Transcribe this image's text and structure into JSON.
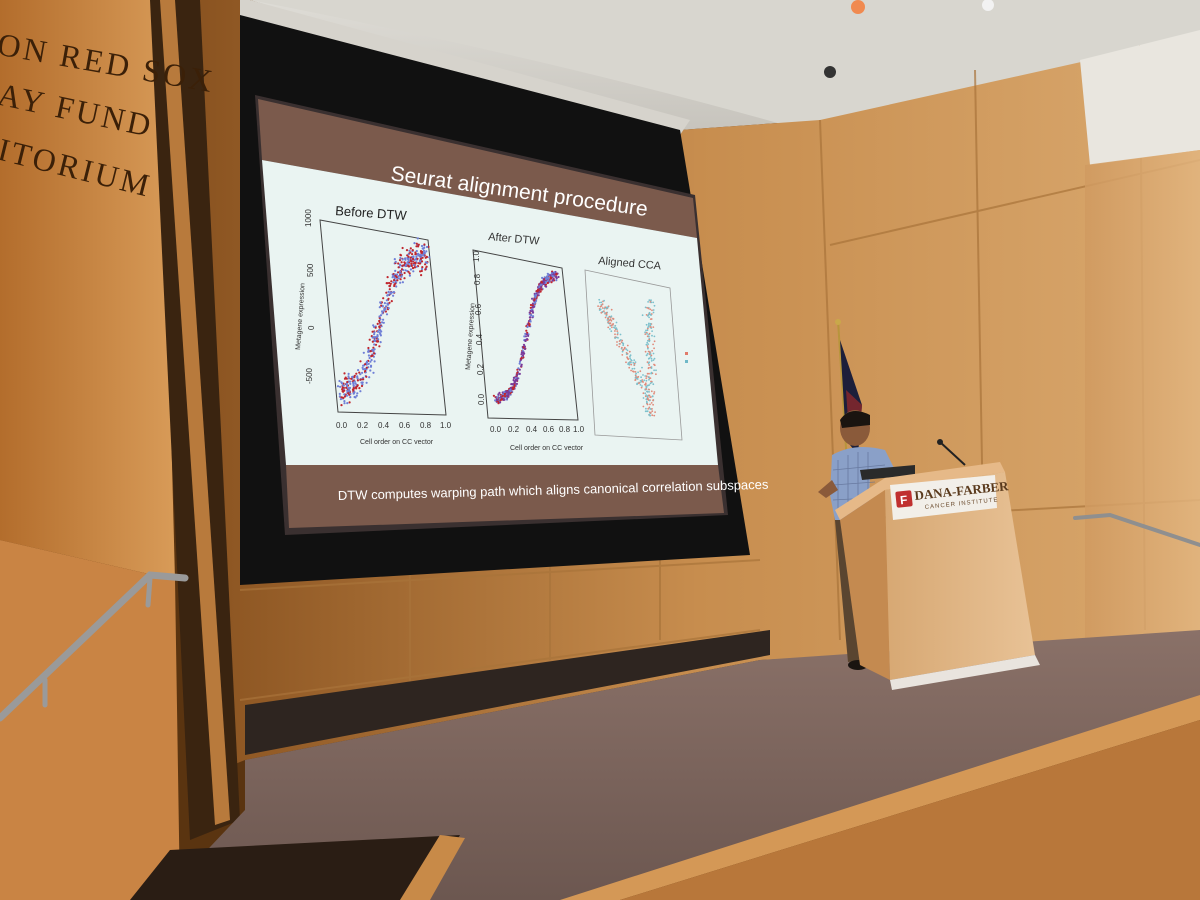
{
  "wall_lettering": [
    "ON RED SOX",
    "AY FUND",
    "ITORIUM"
  ],
  "slide": {
    "title": "Seurat alignment procedure",
    "caption": "DTW computes warping path which aligns canonical correlation subspaces",
    "plots": [
      {
        "title": "Before DTW",
        "ylabel": "Metagene expression",
        "xlabel": "Cell order on CC vector",
        "yticks": [
          "-500",
          "0",
          "500",
          "1000"
        ],
        "xticks": [
          "0.0",
          "0.2",
          "0.4",
          "0.6",
          "0.8",
          "1.0"
        ]
      },
      {
        "title": "After DTW",
        "ylabel": "Metagene expression",
        "xlabel": "Cell order on CC vector",
        "yticks": [
          "0.0",
          "0.2",
          "0.4",
          "0.6",
          "0.8",
          "1.0"
        ],
        "xticks": [
          "0.0",
          "0.2",
          "0.4",
          "0.6",
          "0.8",
          "1.0"
        ]
      },
      {
        "title": "Aligned CCA"
      }
    ]
  },
  "podium": {
    "brand": "DANA-FARBER",
    "sub": "CANCER INSTITUTE"
  },
  "colors": {
    "wood": "#c98a45",
    "screen_band": "#7b5a4c",
    "screen_plot_bg": "#eaf4f2",
    "red_points": "#c0262e",
    "blue_points": "#6f7fd6",
    "purple_points": "#7a3a9a"
  }
}
